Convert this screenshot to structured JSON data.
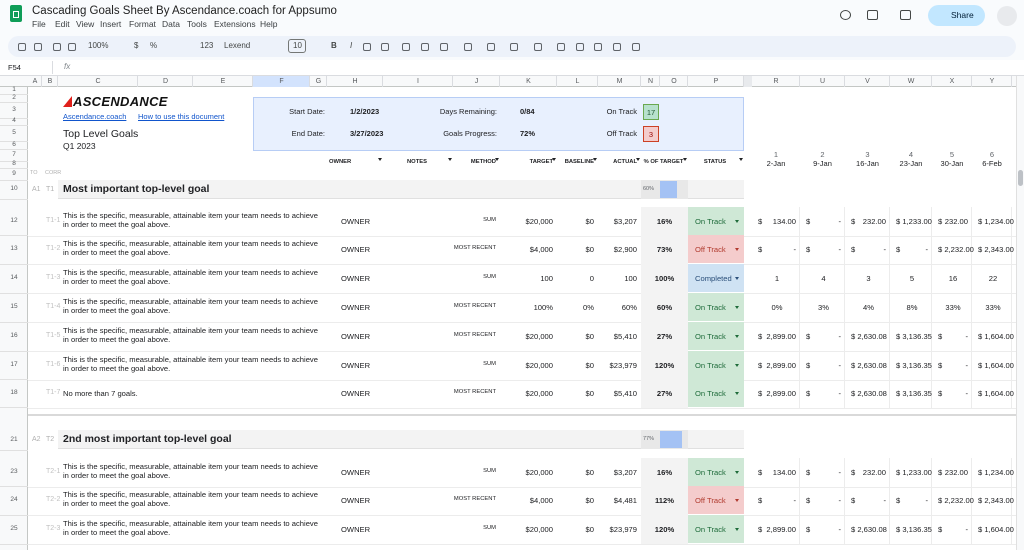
{
  "app": {
    "title": "Cascading Goals Sheet By Ascendance.coach for Appsumo",
    "menu": [
      "File",
      "Edit",
      "View",
      "Insert",
      "Format",
      "Data",
      "Tools",
      "Extensions",
      "Help"
    ],
    "share": "Share"
  },
  "toolbar": {
    "zoom": "100%",
    "currency": "$",
    "percent": "%",
    "number_format": "123",
    "font": "Lexend",
    "font_size": "10",
    "bold": "B",
    "italic": "I"
  },
  "formula_bar": {
    "cell": "F54",
    "fx": "fx"
  },
  "columns": [
    "A",
    "B",
    "C",
    "D",
    "E",
    "F",
    "G",
    "H",
    "I",
    "J",
    "K",
    "L",
    "M",
    "N",
    "O",
    "P",
    "R",
    "U",
    "V",
    "W",
    "X",
    "Y"
  ],
  "rows": [
    "1",
    "2",
    "3",
    "4",
    "5",
    "6",
    "7",
    "8",
    "9",
    "10",
    "12",
    "13",
    "14",
    "15",
    "16",
    "17",
    "18",
    "21",
    "23",
    "24",
    "25"
  ],
  "header": {
    "logo": "ASCENDANCE",
    "links": [
      "Ascendance.coach",
      "How to use this document"
    ],
    "title": "Top Level Goals",
    "period": "Q1 2023",
    "summary": [
      {
        "label": "Start Date:",
        "value": "1/2/2023"
      },
      {
        "label": "End Date:",
        "value": "3/27/2023"
      },
      {
        "label": "Days Remaining:",
        "value": "0/84"
      },
      {
        "label": "Goals Progress:",
        "value": "72%"
      },
      {
        "label": "On Track",
        "value": "17"
      },
      {
        "label": "Off Track",
        "value": "3"
      }
    ]
  },
  "table": {
    "corner": [
      "TO",
      "CORR"
    ],
    "headers": [
      "OWNER",
      "NOTES",
      "METHOD",
      "TARGET",
      "BASELINE",
      "ACTUAL",
      "% OF TARGET",
      "STATUS"
    ],
    "weeks": [
      "1",
      "2",
      "3",
      "4",
      "5",
      "6"
    ],
    "dates": [
      "2-Jan",
      "9-Jan",
      "16-Jan",
      "23-Jan",
      "30-Jan",
      "6-Feb"
    ]
  },
  "goals": [
    {
      "ids": [
        "A1",
        "T1"
      ],
      "title": "Most important top-level goal",
      "progress": 60,
      "progress_label": "60%",
      "items": [
        {
          "id": "T1-1",
          "text": "This is the specific, measurable, attainable item your team needs to achieve in order to meet the goal above.",
          "owner": "OWNER",
          "method": "SUM",
          "target": "$20,000",
          "baseline": "$0",
          "actual": "$3,207",
          "percent": "16%",
          "status": "On Track",
          "weeks": [
            "$ 134.00",
            "$ -",
            "$ 232.00",
            "$ 1,233.00",
            "$ 232.00",
            "$ 1,234.00"
          ]
        },
        {
          "id": "T1-2",
          "text": "This is the specific, measurable, attainable item your team needs to achieve in order to meet the goal above.",
          "owner": "OWNER",
          "method": "MOST RECENT",
          "target": "$4,000",
          "baseline": "$0",
          "actual": "$2,900",
          "percent": "73%",
          "status": "Off Track",
          "weeks": [
            "$ -",
            "$ -",
            "$ -",
            "$ -",
            "$ 2,232.00",
            "$ 2,343.00"
          ]
        },
        {
          "id": "T1-3",
          "text": "This is the specific, measurable, attainable item your team needs to achieve in order to meet the goal above.",
          "owner": "OWNER",
          "method": "SUM",
          "target": "100",
          "baseline": "0",
          "actual": "100",
          "percent": "100%",
          "status": "Completed",
          "weeks": [
            "1",
            "4",
            "3",
            "5",
            "16",
            "22"
          ]
        },
        {
          "id": "T1-4",
          "text": "This is the specific, measurable, attainable item your team needs to achieve in order to meet the goal above.",
          "owner": "OWNER",
          "method": "MOST RECENT",
          "target": "100%",
          "baseline": "0%",
          "actual": "60%",
          "percent": "60%",
          "status": "On Track",
          "weeks": [
            "0%",
            "3%",
            "4%",
            "8%",
            "33%",
            "33%"
          ]
        },
        {
          "id": "T1-5",
          "text": "This is the specific, measurable, attainable item your team needs to achieve in order to meet the goal above.",
          "owner": "OWNER",
          "method": "MOST RECENT",
          "target": "$20,000",
          "baseline": "$0",
          "actual": "$5,410",
          "percent": "27%",
          "status": "On Track",
          "weeks": [
            "$ 2,899.00",
            "$ -",
            "$ 2,630.08",
            "$ 3,136.35",
            "$ -",
            "$ 1,604.00"
          ]
        },
        {
          "id": "T1-6",
          "text": "This is the specific, measurable, attainable item your team needs to achieve in order to meet the goal above.",
          "owner": "OWNER",
          "method": "SUM",
          "target": "$20,000",
          "baseline": "$0",
          "actual": "$23,979",
          "percent": "120%",
          "status": "On Track",
          "weeks": [
            "$ 2,899.00",
            "$ -",
            "$ 2,630.08",
            "$ 3,136.35",
            "$ -",
            "$ 1,604.00"
          ]
        },
        {
          "id": "T1-7",
          "text": "No more than 7 goals.",
          "owner": "OWNER",
          "method": "MOST RECENT",
          "target": "$20,000",
          "baseline": "$0",
          "actual": "$5,410",
          "percent": "27%",
          "status": "On Track",
          "weeks": [
            "$ 2,899.00",
            "$ -",
            "$ 2,630.08",
            "$ 3,136.35",
            "$ -",
            "$ 1,604.00"
          ]
        }
      ]
    },
    {
      "ids": [
        "A2",
        "T2"
      ],
      "title": "2nd most important top-level goal",
      "progress": 77,
      "progress_label": "77%",
      "items": [
        {
          "id": "T2-1",
          "text": "This is the specific, measurable, attainable item your team needs to achieve in order to meet the goal above.",
          "owner": "OWNER",
          "method": "SUM",
          "target": "$20,000",
          "baseline": "$0",
          "actual": "$3,207",
          "percent": "16%",
          "status": "On Track",
          "weeks": [
            "$ 134.00",
            "$ -",
            "$ 232.00",
            "$ 1,233.00",
            "$ 232.00",
            "$ 1,234.00"
          ]
        },
        {
          "id": "T2-2",
          "text": "This is the specific, measurable, attainable item your team needs to achieve in order to meet the goal above.",
          "owner": "OWNER",
          "method": "MOST RECENT",
          "target": "$4,000",
          "baseline": "$0",
          "actual": "$4,481",
          "percent": "112%",
          "status": "Off Track",
          "weeks": [
            "$ -",
            "$ -",
            "$ -",
            "$ -",
            "$ 2,232.00",
            "$ 2,343.00"
          ]
        },
        {
          "id": "T2-3",
          "text": "This is the specific, measurable, attainable item your team needs to achieve in order to meet the goal above.",
          "owner": "OWNER",
          "method": "SUM",
          "target": "$20,000",
          "baseline": "$0",
          "actual": "$23,979",
          "percent": "120%",
          "status": "On Track",
          "weeks": [
            "$ 2,899.00",
            "$ -",
            "$ 2,630.08",
            "$ 3,136.35",
            "$ -",
            "$ 1,604.00"
          ]
        }
      ]
    }
  ]
}
